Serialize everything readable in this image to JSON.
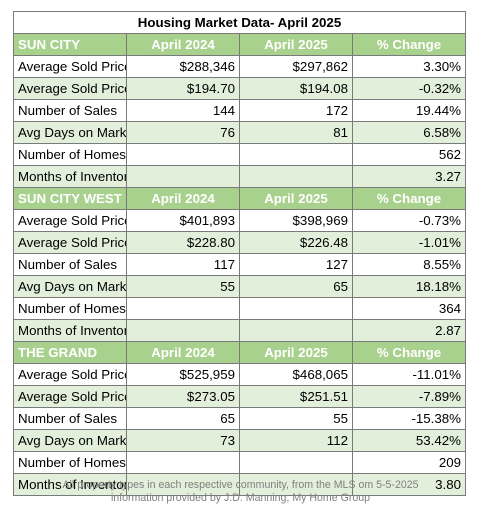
{
  "title": "Housing Market Data- April 2025",
  "sections": [
    {
      "name": "SUN CITY",
      "col1": "April 2024",
      "col2": "April 2025",
      "col3": "% Change",
      "rows": [
        {
          "label": "Average Sold Price",
          "v2024": "$288,346",
          "v2025": "$297,862",
          "change": "3.30%"
        },
        {
          "label": "Average Sold Price Per SqFt",
          "v2024": "$194.70",
          "v2025": "$194.08",
          "change": "-0.32%"
        },
        {
          "label": "Number of Sales",
          "v2024": "144",
          "v2025": "172",
          "change": "19.44%"
        },
        {
          "label": "Avg Days on Market",
          "v2024": "76",
          "v2025": "81",
          "change": "6.58%"
        },
        {
          "label": "Number of Homes for sale now",
          "v2024": "",
          "v2025": "",
          "change": "562"
        },
        {
          "label": "Months of Inventory for sale",
          "v2024": "",
          "v2025": "",
          "change": "3.27"
        }
      ]
    },
    {
      "name": "SUN CITY WEST",
      "col1": "April 2024",
      "col2": "April 2025",
      "col3": "% Change",
      "rows": [
        {
          "label": "Average Sold Price",
          "v2024": "$401,893",
          "v2025": "$398,969",
          "change": "-0.73%"
        },
        {
          "label": "Average Sold Price Per SqFt",
          "v2024": "$228.80",
          "v2025": "$226.48",
          "change": "-1.01%"
        },
        {
          "label": "Number of Sales",
          "v2024": "117",
          "v2025": "127",
          "change": "8.55%"
        },
        {
          "label": "Avg Days on Market",
          "v2024": "55",
          "v2025": "65",
          "change": "18.18%"
        },
        {
          "label": "Number of Homes for sale now",
          "v2024": "",
          "v2025": "",
          "change": "364"
        },
        {
          "label": "Months of Inventory for sale",
          "v2024": "",
          "v2025": "",
          "change": "2.87"
        }
      ]
    },
    {
      "name": "THE GRAND",
      "col1": "April 2024",
      "col2": "April 2025",
      "col3": "% Change",
      "rows": [
        {
          "label": "Average Sold Price",
          "v2024": "$525,959",
          "v2025": "$468,065",
          "change": "-11.01%"
        },
        {
          "label": "Average Sold Price Per SqFt",
          "v2024": "$273.05",
          "v2025": "$251.51",
          "change": "-7.89%"
        },
        {
          "label": "Number of Sales",
          "v2024": "65",
          "v2025": "55",
          "change": "-15.38%"
        },
        {
          "label": "Avg Days on Market",
          "v2024": "73",
          "v2025": "112",
          "change": "53.42%"
        },
        {
          "label": "Number of Homes for sale now",
          "v2024": "",
          "v2025": "",
          "change": "209"
        },
        {
          "label": "Months of Inventory for sale",
          "v2024": "",
          "v2025": "",
          "change": "3.80"
        }
      ]
    }
  ],
  "footer": {
    "line1": "All property types in each respective community, from the MLS om 5-5-2025",
    "line2": "information provided by J.D. Manning, My Home Group"
  }
}
